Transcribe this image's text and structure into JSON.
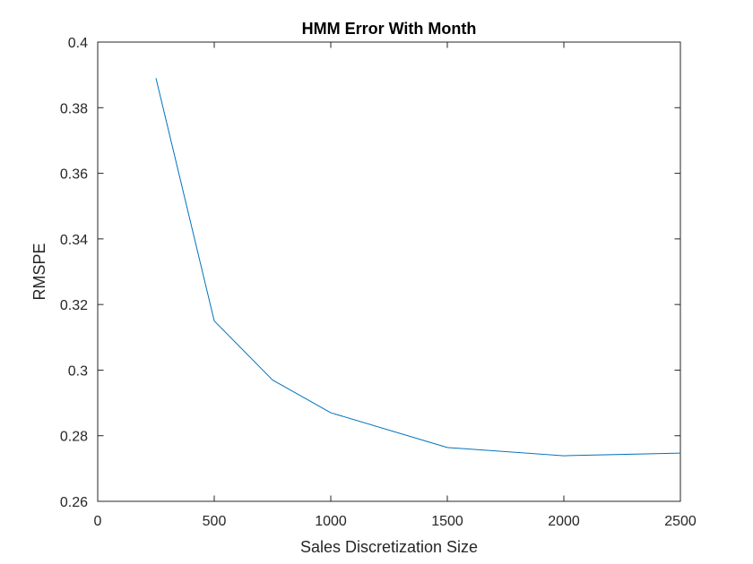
{
  "chart_data": {
    "type": "line",
    "title": "HMM Error With Month",
    "xlabel": "Sales Discretization Size",
    "ylabel": "RMSPE",
    "xlim": [
      0,
      2500
    ],
    "ylim": [
      0.26,
      0.4
    ],
    "x_ticks": [
      0,
      500,
      1000,
      1500,
      2000,
      2500
    ],
    "x_tick_labels": [
      "0",
      "500",
      "1000",
      "1500",
      "2000",
      "2500"
    ],
    "y_ticks": [
      0.26,
      0.28,
      0.3,
      0.32,
      0.34,
      0.36,
      0.38,
      0.4
    ],
    "y_tick_labels": [
      "0.26",
      "0.28",
      "0.3",
      "0.32",
      "0.34",
      "0.36",
      "0.38",
      "0.4"
    ],
    "grid": false,
    "legend": "none",
    "series": [
      {
        "color": "#0072BD",
        "x": [
          250,
          500,
          750,
          1000,
          1500,
          2000,
          2500
        ],
        "y": [
          0.389,
          0.315,
          0.297,
          0.287,
          0.2764,
          0.2739,
          0.2747
        ]
      }
    ]
  }
}
